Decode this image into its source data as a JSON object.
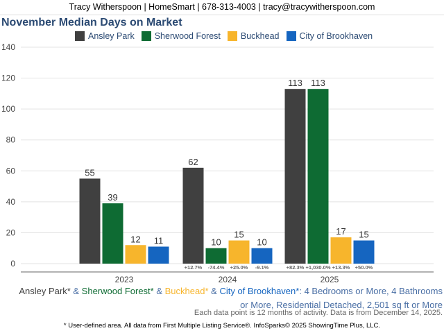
{
  "header": "Tracy Witherspoon | HomeSmart | 678-313-4003 | tracy@tracywitherspoon.com",
  "chart_data": {
    "type": "bar",
    "title": "November Median Days on Market",
    "categories": [
      "2023",
      "2024",
      "2025"
    ],
    "series": [
      {
        "name": "Ansley Park",
        "color": "#404040",
        "values": [
          55,
          62,
          113
        ],
        "changes": [
          "",
          "+12.7%",
          "+82.3%"
        ]
      },
      {
        "name": "Sherwood Forest",
        "color": "#0e6b33",
        "values": [
          39,
          10,
          113
        ],
        "changes": [
          "",
          "-74.4%",
          "+1,030.0%"
        ]
      },
      {
        "name": "Buckhead",
        "color": "#f7b52c",
        "values": [
          12,
          15,
          17
        ],
        "changes": [
          "",
          "+25.0%",
          "+13.3%"
        ]
      },
      {
        "name": "City of Brookhaven",
        "color": "#1565c0",
        "values": [
          11,
          10,
          15
        ],
        "changes": [
          "",
          "-9.1%",
          "+50.0%"
        ]
      }
    ],
    "yticks": [
      0,
      20,
      40,
      60,
      80,
      100,
      120,
      140
    ],
    "ylim": [
      0,
      140
    ],
    "grid": true,
    "legend": "top"
  },
  "description": {
    "a1": "Ansley Park*",
    "amp1": " & ",
    "a2": "Sherwood Forest*",
    "amp2": " & ",
    "a3": "Buckhead*",
    "amp3": " & ",
    "a4": "City of Brookhaven*",
    "rest": ": 4 Bedrooms or More, 4 Bathrooms or More, Residential Detached, 2,501 sq ft or More"
  },
  "note": "Each data point is 12 months of activity. Data is from December 14, 2025.",
  "footer": "* User-defined area. All data from First Multiple Listing Service®. InfoSparks© 2025 ShowingTime Plus, LLC."
}
